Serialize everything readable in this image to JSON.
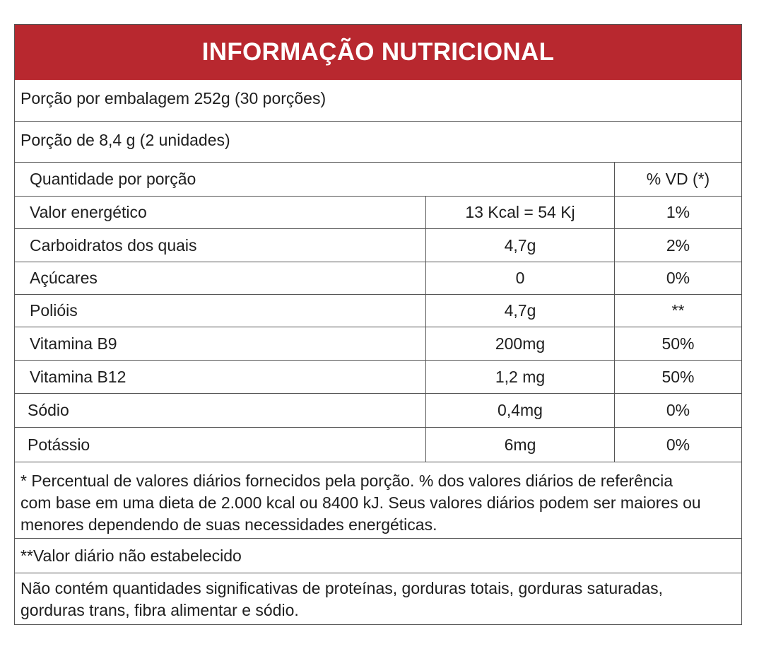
{
  "title": "INFORMAÇÃO NUTRICIONAL",
  "serving": {
    "per_package": "Porção por embalagem 252g (30 porções)",
    "portion": "Porção de 8,4 g (2 unidades)"
  },
  "table": {
    "header_name": "Quantidade por porção",
    "header_vd": "% VD (*)",
    "rows": [
      {
        "name": "Valor energético",
        "amount": "13 Kcal = 54 Kj",
        "vd": "1%"
      },
      {
        "name": "Carboidratos dos quais",
        "amount": "4,7g",
        "vd": "2%"
      },
      {
        "name": "Açúcares",
        "amount": "0",
        "vd": "0%"
      },
      {
        "name": "Polióis",
        "amount": "4,7g",
        "vd": "**"
      },
      {
        "name": "Vitamina B9",
        "amount": "200mg",
        "vd": "50%"
      },
      {
        "name": "Vitamina B12",
        "amount": "1,2 mg",
        "vd": "50%"
      },
      {
        "name": "Sódio",
        "amount": "0,4mg",
        "vd": "0%"
      },
      {
        "name": "Potássio",
        "amount": "6mg",
        "vd": "0%"
      }
    ]
  },
  "notes": {
    "percent_line1": "* Percentual de valores diários fornecidos pela porção. % dos valores diários de referência",
    "percent_line2": "com base em uma dieta de 2.000 kcal ou 8400 kJ. Seus valores diários podem ser maiores ou",
    "percent_line3": "menores dependendo de suas necessidades energéticas.",
    "not_established": "**Valor diário não estabelecido",
    "not_contains_line1": "Não contém quantidades significativas de proteínas, gorduras totais, gorduras saturadas,",
    "not_contains_line2": "gorduras trans, fibra alimentar e sódio."
  },
  "colors": {
    "header_bg": "#b8282f",
    "header_text": "#ffffff",
    "border": "#555555"
  }
}
